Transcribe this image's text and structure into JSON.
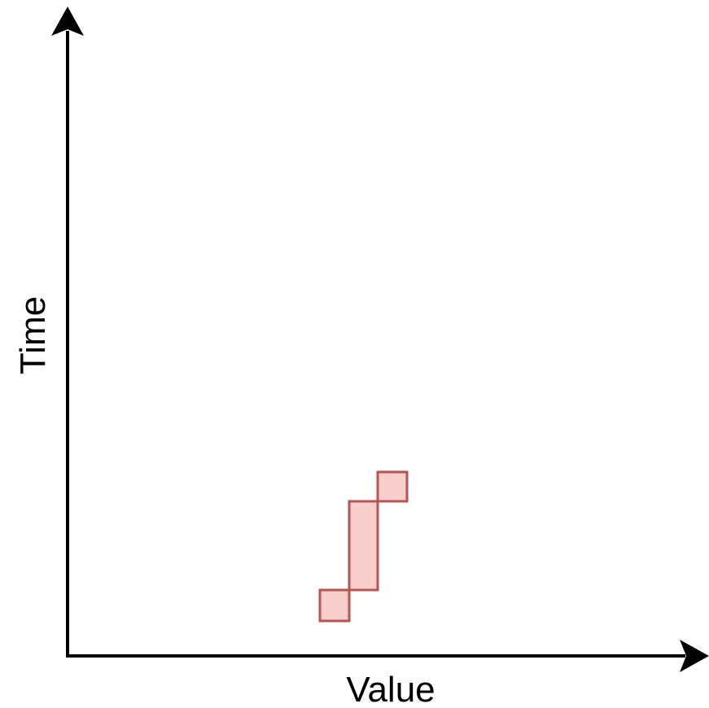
{
  "axes": {
    "x_label": "Value",
    "y_label": "Time"
  },
  "colors": {
    "axis": "#000000",
    "cell_fill": "#f8cecc",
    "cell_stroke": "#b85450"
  },
  "cells": [
    {
      "id": "cell-1",
      "name": "histogram-cell-low"
    },
    {
      "id": "cell-2",
      "name": "histogram-cell-tall"
    },
    {
      "id": "cell-3",
      "name": "histogram-cell-high"
    }
  ]
}
